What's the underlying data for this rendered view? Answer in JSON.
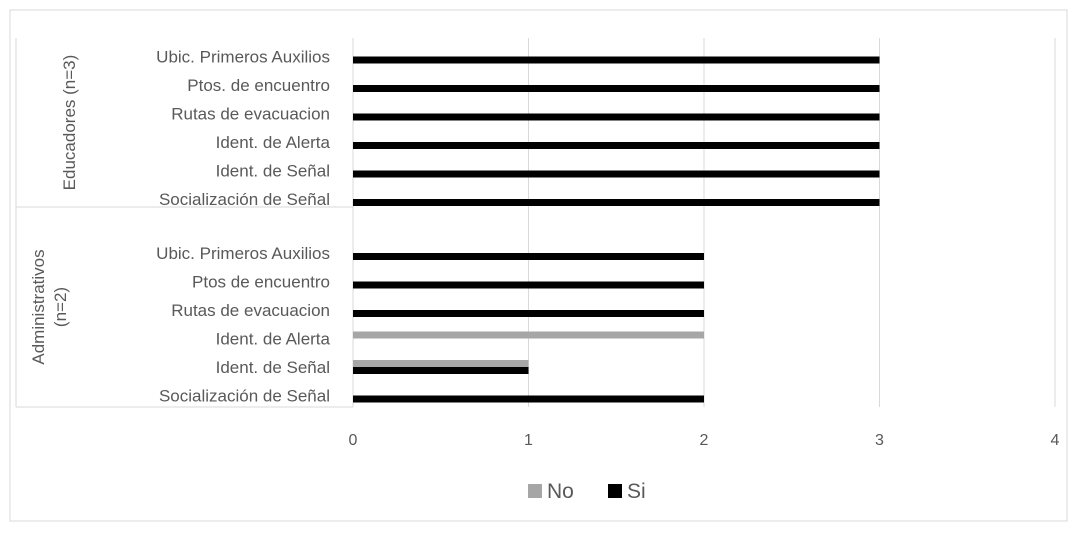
{
  "chart_data": {
    "type": "bar",
    "orientation": "horizontal",
    "groups": [
      {
        "label": "Educadores (n=3)",
        "label_lines": [
          "Educadores (n=3)"
        ],
        "categories": [
          "Ubic. Primeros Auxilios",
          "Ptos. de encuentro",
          "Rutas de evacuacion",
          "Ident. de Alerta",
          "Ident. de Señal",
          "Socialización de Señal"
        ],
        "series": [
          {
            "name": "No",
            "values": [
              0,
              0,
              0,
              0,
              0,
              0
            ]
          },
          {
            "name": "Si",
            "values": [
              3,
              3,
              3,
              3,
              3,
              3
            ]
          }
        ]
      },
      {
        "label": "Administrativos (n=2)",
        "label_lines": [
          "Administrativos",
          "(n=2)"
        ],
        "categories": [
          "Ubic. Primeros Auxilios",
          "Ptos de encuentro",
          "Rutas de evacuacion",
          "Ident. de Alerta",
          "Ident. de Señal",
          "Socialización de Señal"
        ],
        "series": [
          {
            "name": "No",
            "values": [
              0,
              0,
              0,
              2,
              1,
              0
            ]
          },
          {
            "name": "Si",
            "values": [
              2,
              2,
              2,
              0,
              1,
              2
            ]
          }
        ]
      }
    ],
    "series_colors": {
      "No": "#a6a6a6",
      "Si": "#000000"
    },
    "xlim": [
      0,
      4
    ],
    "xticks": [
      "0",
      "1",
      "2",
      "3",
      "4"
    ],
    "grid": true,
    "legend": {
      "position": "bottom",
      "entries": [
        "No",
        "Si"
      ]
    },
    "title": "",
    "xlabel": "",
    "ylabel": ""
  }
}
